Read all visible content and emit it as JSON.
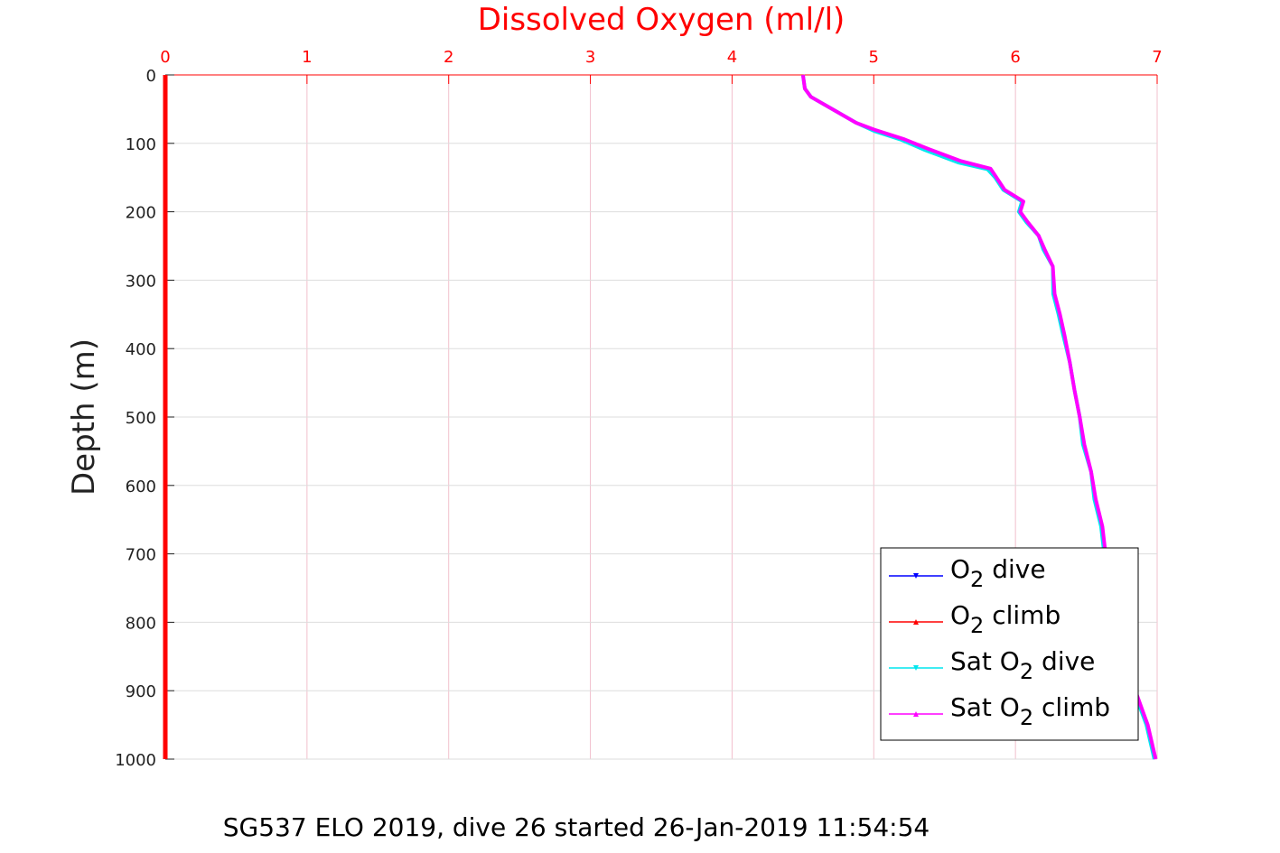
{
  "chart_data": {
    "type": "line",
    "title": "Dissolved Oxygen (ml/l)",
    "ylabel": "Depth (m)",
    "caption": "SG537 ELO 2019, dive 26 started 26-Jan-2019 11:54:54",
    "xlim": [
      0,
      7
    ],
    "ylim": [
      0,
      1000
    ],
    "y_reversed": true,
    "x_axis_position": "top",
    "grid": true,
    "x_ticks": [
      "0",
      "1",
      "2",
      "3",
      "4",
      "5",
      "6",
      "7"
    ],
    "y_ticks": [
      "0",
      "100",
      "200",
      "300",
      "400",
      "500",
      "600",
      "700",
      "800",
      "900",
      "1000"
    ],
    "legend_position": "bottom-right",
    "colors": {
      "axis_top": "#ff0000",
      "axis_left": "#222222",
      "grid": "#f2c0cc",
      "o2_dive": "#0000ff",
      "o2_climb": "#ff0000",
      "sat_o2_dive": "#00e6ee",
      "sat_o2_climb": "#ff00ff"
    },
    "legend": [
      {
        "id": "o2_dive",
        "pre": "O",
        "sub": "2",
        "post": " dive",
        "marker": "down"
      },
      {
        "id": "o2_climb",
        "pre": "O",
        "sub": "2",
        "post": " climb",
        "marker": "up"
      },
      {
        "id": "sat_o2_dive",
        "pre": "Sat O",
        "sub": "2",
        "post": " dive",
        "marker": "down"
      },
      {
        "id": "sat_o2_climb",
        "pre": "Sat O",
        "sub": "2",
        "post": " climb",
        "marker": "up"
      }
    ],
    "series": [
      {
        "id": "o2_dive",
        "x": [
          0,
          0
        ],
        "y": [
          0,
          1000
        ]
      },
      {
        "id": "o2_climb",
        "x": [
          0,
          0
        ],
        "y": [
          0,
          1000
        ]
      },
      {
        "id": "sat_o2_dive",
        "x": [
          4.5,
          4.51,
          4.56,
          4.72,
          4.88,
          5.0,
          5.2,
          5.36,
          5.6,
          5.8,
          5.86,
          5.91,
          6.05,
          6.02,
          6.08,
          6.16,
          6.2,
          6.26,
          6.27,
          6.3,
          6.34,
          6.38,
          6.42,
          6.45,
          6.48,
          6.53,
          6.56,
          6.6,
          6.63,
          6.67,
          6.72,
          6.77,
          6.84,
          6.92,
          6.98
        ],
        "y": [
          0,
          20,
          32,
          52,
          70,
          82,
          95,
          110,
          128,
          138,
          150,
          168,
          185,
          200,
          215,
          235,
          255,
          280,
          320,
          350,
          380,
          420,
          460,
          500,
          540,
          580,
          620,
          660,
          700,
          750,
          800,
          850,
          900,
          950,
          1000
        ]
      },
      {
        "id": "sat_o2_climb",
        "x": [
          4.5,
          4.51,
          4.56,
          4.72,
          4.88,
          5.0,
          5.22,
          5.38,
          5.62,
          5.82,
          5.87,
          5.92,
          6.06,
          6.03,
          6.09,
          6.16,
          6.21,
          6.26,
          6.28,
          6.31,
          6.35,
          6.38,
          6.42,
          6.45,
          6.49,
          6.53,
          6.57,
          6.61,
          6.64,
          6.68,
          6.72,
          6.78,
          6.85,
          6.93,
          6.99
        ],
        "y": [
          0,
          20,
          32,
          52,
          70,
          80,
          94,
          108,
          126,
          137,
          150,
          168,
          185,
          200,
          215,
          235,
          255,
          280,
          320,
          350,
          380,
          420,
          460,
          500,
          540,
          580,
          620,
          660,
          700,
          750,
          800,
          850,
          900,
          950,
          1000
        ]
      }
    ]
  }
}
